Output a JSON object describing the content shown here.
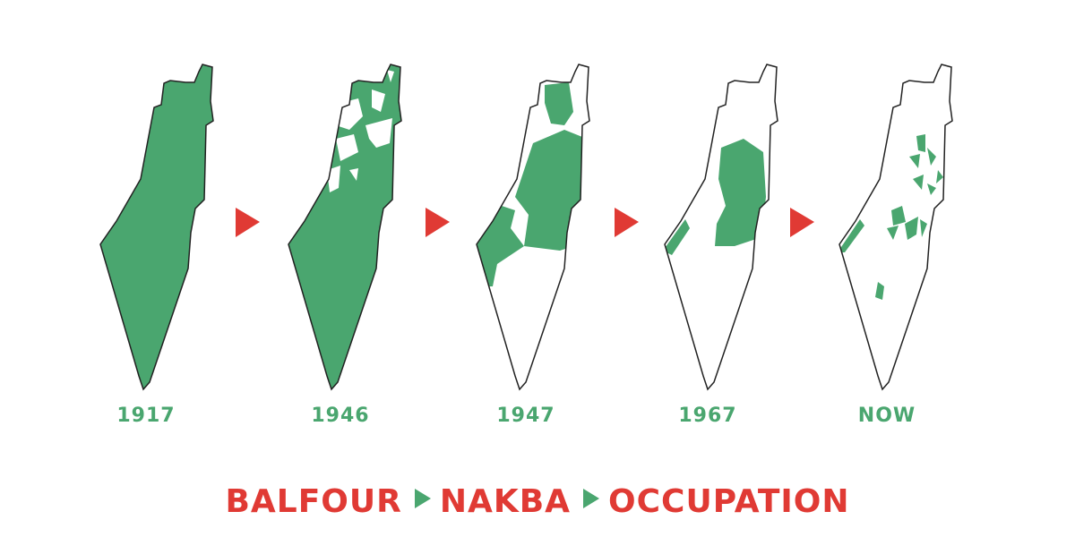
{
  "colors": {
    "green": "#4aa66f",
    "red": "#e03a34",
    "outline": "#222222"
  },
  "maps": [
    {
      "year": "1917"
    },
    {
      "year": "1946"
    },
    {
      "year": "1947"
    },
    {
      "year": "1967"
    },
    {
      "year": "NOW"
    }
  ],
  "arrow_icon": "red-triangle-right",
  "footer": {
    "words": [
      "BALFOUR",
      "NAKBA",
      "OCCUPATION"
    ],
    "separator_icon": "green-triangle-right"
  }
}
